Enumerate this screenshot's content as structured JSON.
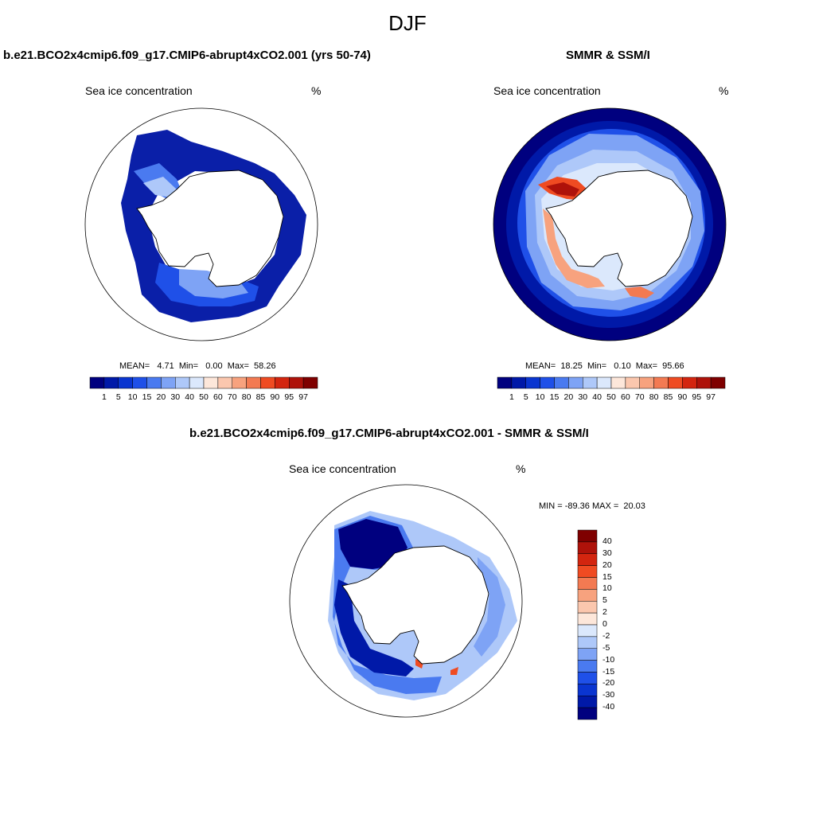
{
  "figure": {
    "title": "DJF"
  },
  "panels": [
    {
      "title": "b.e21.BCO2x4cmip6.f09_g17.CMIP6-abrupt4xCO2.001 (yrs 50-74)",
      "variable": "Sea ice concentration",
      "units": "%",
      "stats": "MEAN=   4.71  Min=   0.00  Max=  58.26"
    },
    {
      "title": "SMMR & SSM/I",
      "variable": "Sea ice concentration",
      "units": "%",
      "stats": "MEAN=  18.25  Min=   0.10  Max=  95.66"
    },
    {
      "title": "b.e21.BCO2x4cmip6.f09_g17.CMIP6-abrupt4xCO2.001 - SMMR & SSM/I",
      "variable": "Sea ice concentration",
      "units": "%",
      "stats": "MIN = -89.36 MAX =  20.03"
    }
  ],
  "colorbar_concentration": {
    "labels": [
      "1",
      "5",
      "10",
      "15",
      "20",
      "30",
      "40",
      "50",
      "60",
      "70",
      "80",
      "85",
      "90",
      "95",
      "97"
    ],
    "colors": [
      "#00007f",
      "#0019a8",
      "#0a35d0",
      "#1f50e8",
      "#4a7af0",
      "#7ea3f5",
      "#aec8f9",
      "#dbe8fc",
      "#fde7da",
      "#fbc7ae",
      "#f7a27e",
      "#f37a52",
      "#ef4b22",
      "#d3250f",
      "#ae120a",
      "#7f0000"
    ]
  },
  "colorbar_difference": {
    "labels": [
      "40",
      "30",
      "20",
      "15",
      "10",
      "5",
      "2",
      "0",
      "-2",
      "-5",
      "-10",
      "-15",
      "-20",
      "-30",
      "-40"
    ],
    "colors": [
      "#7f0000",
      "#ae120a",
      "#d3250f",
      "#ef4b22",
      "#f37a52",
      "#f7a27e",
      "#fbc7ae",
      "#fde7da",
      "#dbe8fc",
      "#aec8f9",
      "#7ea3f5",
      "#4a7af0",
      "#1f50e8",
      "#0a35d0",
      "#0019a8",
      "#00007f"
    ]
  }
}
